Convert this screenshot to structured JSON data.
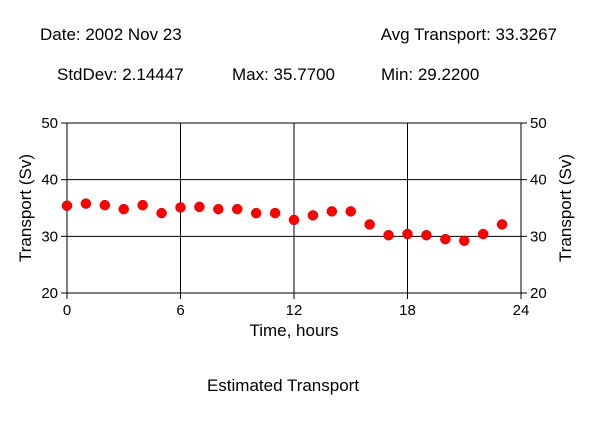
{
  "header": {
    "date": "Date: 2002 Nov 23",
    "avg": "Avg Transport: 33.3267",
    "stddev": "StdDev: 2.14447",
    "max": "Max: 35.7700",
    "min": "Min: 29.2200"
  },
  "caption": "Estimated Transport",
  "colors": {
    "points": "#ff0000",
    "axes": "#000000",
    "background": "#ffffff"
  },
  "chart_data": {
    "type": "scatter",
    "title": "Estimated Transport",
    "xlabel": "Time, hours",
    "ylabel": "Transport (Sv)",
    "ylabel_right": "Transport (Sv)",
    "xlim": [
      0,
      24
    ],
    "ylim": [
      20,
      50
    ],
    "xticks": [
      0,
      6,
      12,
      18,
      24
    ],
    "yticks": [
      20,
      30,
      40,
      50
    ],
    "grid": true,
    "series": [
      {
        "x": [
          0,
          1,
          2,
          3,
          4,
          5,
          6,
          7,
          8,
          9,
          10,
          11,
          12,
          13,
          14,
          15,
          16,
          17,
          18,
          19,
          20,
          21,
          22,
          23
        ],
        "y": [
          35.4,
          35.77,
          35.5,
          34.8,
          35.5,
          34.1,
          35.1,
          35.2,
          34.8,
          34.8,
          34.1,
          34.1,
          32.9,
          33.7,
          34.4,
          34.4,
          32.1,
          30.2,
          30.4,
          30.2,
          29.5,
          29.22,
          30.4,
          32.1
        ]
      }
    ]
  }
}
